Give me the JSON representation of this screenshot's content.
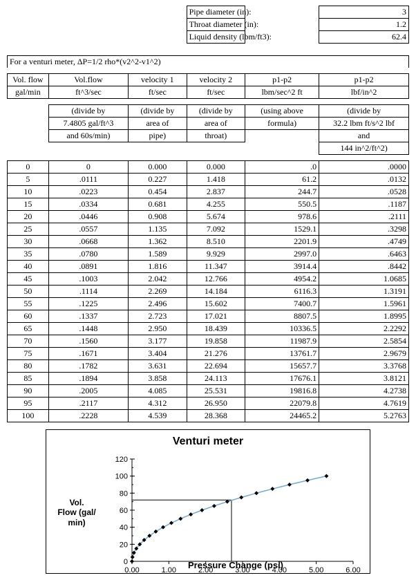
{
  "params": {
    "pipe_d_label": "Pipe diameter (in):",
    "pipe_d": "3",
    "throat_d_label": "Throat diameter (in):",
    "throat_d": "1.2",
    "density_label": "Liquid density (lbm/ft3):",
    "density": "62.4"
  },
  "formula": "For a venturi meter, ΔP=1/2 rho*(v2^2-v1^2)",
  "headers": {
    "c1a": "Vol. flow",
    "c1b": "gal/min",
    "c2a": "Vol.flow",
    "c2b": "ft^3/sec",
    "c3a": "velocity 1",
    "c3b": "ft/sec",
    "c4a": "velocity 2",
    "c4b": "ft/sec",
    "c5a": "p1-p2",
    "c5b": "lbm/sec^2 ft",
    "c6a": "p1-p2",
    "c6b": "lbf/in^2"
  },
  "notes": {
    "c2_1": "(divide by",
    "c2_2": "7.4805 gal/ft^3",
    "c2_3": "and 60s/min)",
    "c3_1": "(divide by",
    "c3_2": "area of",
    "c3_3": "pipe)",
    "c4_1": "(divide by",
    "c4_2": "area of",
    "c4_3": "throat)",
    "c5_1": "(using above",
    "c5_2": "formula)",
    "c6_1": "(divide by",
    "c6_2": "32.2 lbm ft/s^2 lbf",
    "c6_3": "and",
    "c6_4": "144 in^2/ft^2)"
  },
  "rows": [
    [
      "0",
      "0",
      "0.000",
      "0.000",
      ".0",
      ".0000"
    ],
    [
      "5",
      ".0111",
      "0.227",
      "1.418",
      "61.2",
      ".0132"
    ],
    [
      "10",
      ".0223",
      "0.454",
      "2.837",
      "244.7",
      ".0528"
    ],
    [
      "15",
      ".0334",
      "0.681",
      "4.255",
      "550.5",
      ".1187"
    ],
    [
      "20",
      ".0446",
      "0.908",
      "5.674",
      "978.6",
      ".2111"
    ],
    [
      "25",
      ".0557",
      "1.135",
      "7.092",
      "1529.1",
      ".3298"
    ],
    [
      "30",
      ".0668",
      "1.362",
      "8.510",
      "2201.9",
      ".4749"
    ],
    [
      "35",
      ".0780",
      "1.589",
      "9.929",
      "2997.0",
      ".6463"
    ],
    [
      "40",
      ".0891",
      "1.816",
      "11.347",
      "3914.4",
      ".8442"
    ],
    [
      "45",
      ".1003",
      "2.042",
      "12.766",
      "4954.2",
      "1.0685"
    ],
    [
      "50",
      ".1114",
      "2.269",
      "14.184",
      "6116.3",
      "1.3191"
    ],
    [
      "55",
      ".1225",
      "2.496",
      "15.602",
      "7400.7",
      "1.5961"
    ],
    [
      "60",
      ".1337",
      "2.723",
      "17.021",
      "8807.5",
      "1.8995"
    ],
    [
      "65",
      ".1448",
      "2.950",
      "18.439",
      "10336.5",
      "2.2292"
    ],
    [
      "70",
      ".1560",
      "3.177",
      "19.858",
      "11987.9",
      "2.5854"
    ],
    [
      "75",
      ".1671",
      "3.404",
      "21.276",
      "13761.7",
      "2.9679"
    ],
    [
      "80",
      ".1782",
      "3.631",
      "22.694",
      "15657.7",
      "3.3768"
    ],
    [
      "85",
      ".1894",
      "3.858",
      "24.113",
      "17676.1",
      "3.8121"
    ],
    [
      "90",
      ".2005",
      "4.085",
      "25.531",
      "19816.8",
      "4.2738"
    ],
    [
      "95",
      ".2117",
      "4.312",
      "26.950",
      "22079.8",
      "4.7619"
    ],
    [
      "100",
      ".2228",
      "4.539",
      "28.368",
      "24465.2",
      "5.2763"
    ]
  ],
  "chart": {
    "title": "Venturi meter",
    "ylabel": "Vol. Flow (gal/ min)",
    "ylabel_lines": [
      "Vol.",
      "Flow (gal/",
      "min)"
    ],
    "xlabel": "Pressure Change (psi)",
    "xlim": [
      0,
      6
    ],
    "xtick_step": 1.0,
    "xtick_fmt": 2,
    "ylim": [
      0,
      120
    ],
    "ytick_step": 20,
    "marker": {
      "shape": "diamond",
      "size": 6,
      "fill": "#000000"
    },
    "line_color": "#6faadc",
    "grid_color": "#000000",
    "background": "#ffffff",
    "ref_x": 2.7,
    "ref_y": 72,
    "points": [
      [
        0.0,
        0
      ],
      [
        0.0132,
        5
      ],
      [
        0.0528,
        10
      ],
      [
        0.1187,
        15
      ],
      [
        0.2111,
        20
      ],
      [
        0.3298,
        25
      ],
      [
        0.4749,
        30
      ],
      [
        0.6463,
        35
      ],
      [
        0.8442,
        40
      ],
      [
        1.0685,
        45
      ],
      [
        1.3191,
        50
      ],
      [
        1.5961,
        55
      ],
      [
        1.8995,
        60
      ],
      [
        2.2292,
        65
      ],
      [
        2.5854,
        70
      ],
      [
        2.9679,
        75
      ],
      [
        3.3768,
        80
      ],
      [
        3.8121,
        85
      ],
      [
        4.2738,
        90
      ],
      [
        4.7619,
        95
      ],
      [
        5.2763,
        100
      ]
    ]
  }
}
